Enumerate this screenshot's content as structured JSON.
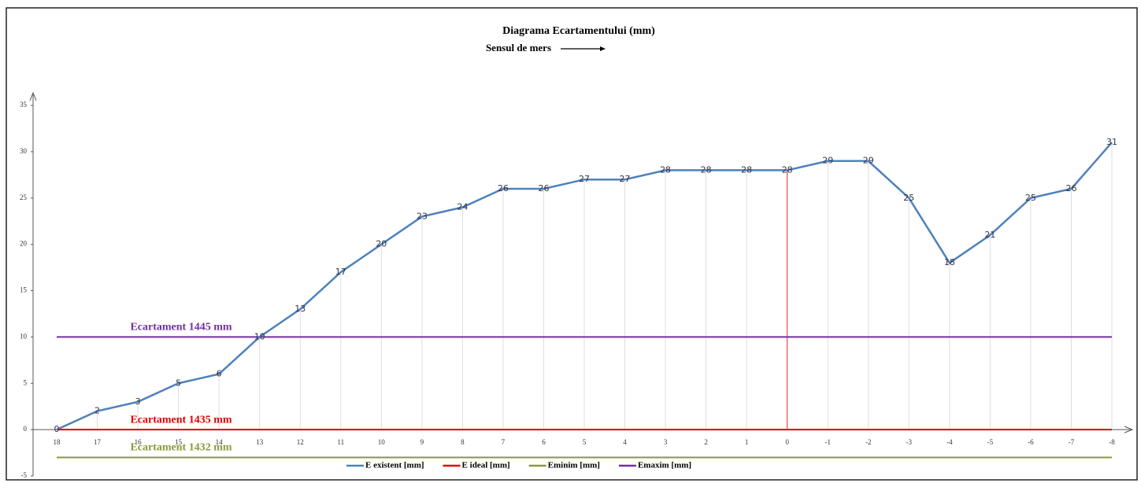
{
  "chart_data": {
    "type": "line",
    "title": "Diagrama Ecartamentului (mm)",
    "subtitle": "Sensul de mers",
    "categories": [
      18,
      17,
      16,
      15,
      14,
      13,
      12,
      11,
      10,
      9,
      8,
      7,
      6,
      5,
      4,
      3,
      2,
      1,
      0,
      -1,
      -2,
      -3,
      -4,
      -5,
      -6,
      -7,
      -8
    ],
    "series": [
      {
        "name": "E existent [mm]",
        "color": "#4f81bd",
        "values": [
          0,
          2,
          3,
          5,
          6,
          10,
          13,
          17,
          20,
          23,
          24,
          26,
          26,
          27,
          27,
          28,
          28,
          28,
          28,
          29,
          29,
          25,
          18,
          21,
          25,
          26,
          31
        ],
        "data_labels": true
      },
      {
        "name": "E ideal [mm]",
        "color": "#e00000",
        "annotation": "Ecartament 1435 mm",
        "values": [
          0,
          0,
          0,
          0,
          0,
          0,
          0,
          0,
          0,
          0,
          0,
          0,
          0,
          0,
          0,
          0,
          0,
          0,
          0,
          0,
          0,
          0,
          0,
          0,
          0,
          0,
          0
        ]
      },
      {
        "name": "Eminim [mm]",
        "color": "#8a9a3a",
        "annotation": "Ecartament 1432 mm",
        "values": [
          -3,
          -3,
          -3,
          -3,
          -3,
          -3,
          -3,
          -3,
          -3,
          -3,
          -3,
          -3,
          -3,
          -3,
          -3,
          -3,
          -3,
          -3,
          -3,
          -3,
          -3,
          -3,
          -3,
          -3,
          -3,
          -3,
          -3
        ]
      },
      {
        "name": "Emaxim [mm]",
        "color": "#7030a0",
        "annotation": "Ecartament 1445 mm",
        "values": [
          10,
          10,
          10,
          10,
          10,
          10,
          10,
          10,
          10,
          10,
          10,
          10,
          10,
          10,
          10,
          10,
          10,
          10,
          10,
          10,
          10,
          10,
          10,
          10,
          10,
          10,
          10
        ]
      }
    ],
    "ylim": [
      -5,
      35
    ],
    "yticks": [
      -5,
      0,
      5,
      10,
      15,
      20,
      25,
      30,
      35
    ],
    "grid": true
  }
}
